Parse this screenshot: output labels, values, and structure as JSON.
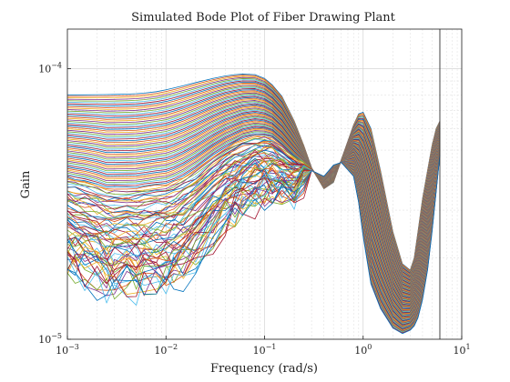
{
  "chart_data": {
    "type": "line",
    "title": "Simulated Bode Plot of Fiber Drawing Plant",
    "xlabel": "Frequency (rad/s)",
    "ylabel": "Gain",
    "xscale": "log",
    "yscale": "log",
    "xlim": [
      0.001,
      10
    ],
    "ylim": [
      1e-05,
      0.00014
    ],
    "x_ticks": [
      {
        "base": "10",
        "exp": "−3",
        "value": 0.001
      },
      {
        "base": "10",
        "exp": "−2",
        "value": 0.01
      },
      {
        "base": "10",
        "exp": "−1",
        "value": 0.1
      },
      {
        "base": "10",
        "exp": "0",
        "value": 1
      },
      {
        "base": "10",
        "exp": "1",
        "value": 10
      }
    ],
    "y_ticks": [
      {
        "base": "10",
        "exp": "−5",
        "value": 1e-05
      },
      {
        "base": "10",
        "exp": "−4",
        "value": 0.0001
      }
    ],
    "grid": true,
    "vertical_marker_x": 6,
    "series_count": 120,
    "frequency": [
      0.001,
      0.0012,
      0.0015,
      0.002,
      0.0025,
      0.003,
      0.004,
      0.005,
      0.006,
      0.008,
      0.01,
      0.012,
      0.015,
      0.02,
      0.03,
      0.04,
      0.05,
      0.06,
      0.08,
      0.1,
      0.12,
      0.15,
      0.2,
      0.25,
      0.3,
      0.4,
      0.5,
      0.6,
      0.8,
      0.9,
      1.0,
      1.2,
      1.5,
      2.0,
      2.5,
      3.0,
      3.3,
      3.6,
      4.0,
      4.5,
      5.0,
      5.5,
      6.0
    ],
    "gain_upper": [
      8e-05,
      8e-05,
      8e-05,
      8.01e-05,
      8.02e-05,
      8.03e-05,
      8.05e-05,
      8.08e-05,
      8.12e-05,
      8.22e-05,
      8.35e-05,
      8.48e-05,
      8.65e-05,
      8.88e-05,
      9.2e-05,
      9.4e-05,
      9.5e-05,
      9.55e-05,
      9.5e-05,
      9.2e-05,
      8.7e-05,
      7.9e-05,
      6.4e-05,
      5.2e-05,
      4.3e-05,
      3.6e-05,
      3.8e-05,
      4.6e-05,
      6.2e-05,
      6.8e-05,
      6.9e-05,
      6e-05,
      4.2e-05,
      2.5e-05,
      1.9e-05,
      1.8e-05,
      2e-05,
      2.5e-05,
      3.3e-05,
      4.2e-05,
      5.2e-05,
      6e-05,
      6.4e-05
    ],
    "gain_lower": [
      1.8e-05,
      1.75e-05,
      1.7e-05,
      1.6e-05,
      1.5e-05,
      1.5e-05,
      1.5e-05,
      1.5e-05,
      1.52e-05,
      1.55e-05,
      1.55e-05,
      1.6e-05,
      1.7e-05,
      1.9e-05,
      2.3e-05,
      2.6e-05,
      2.8e-05,
      3e-05,
      3.2e-05,
      3.3e-05,
      3.4e-05,
      3.3e-05,
      3.4e-05,
      3.8e-05,
      4.2e-05,
      4e-05,
      4.4e-05,
      4.5e-05,
      4e-05,
      3.2e-05,
      2.4e-05,
      1.6e-05,
      1.3e-05,
      1.1e-05,
      1.05e-05,
      1.08e-05,
      1.12e-05,
      1.2e-05,
      1.4e-05,
      1.8e-05,
      2.5e-05,
      3.5e-05,
      4.8e-05
    ],
    "colors": [
      "#0072BD",
      "#D95319",
      "#EDB120",
      "#7E2F8E",
      "#77AC30",
      "#4DBEEE",
      "#A2142F"
    ]
  }
}
